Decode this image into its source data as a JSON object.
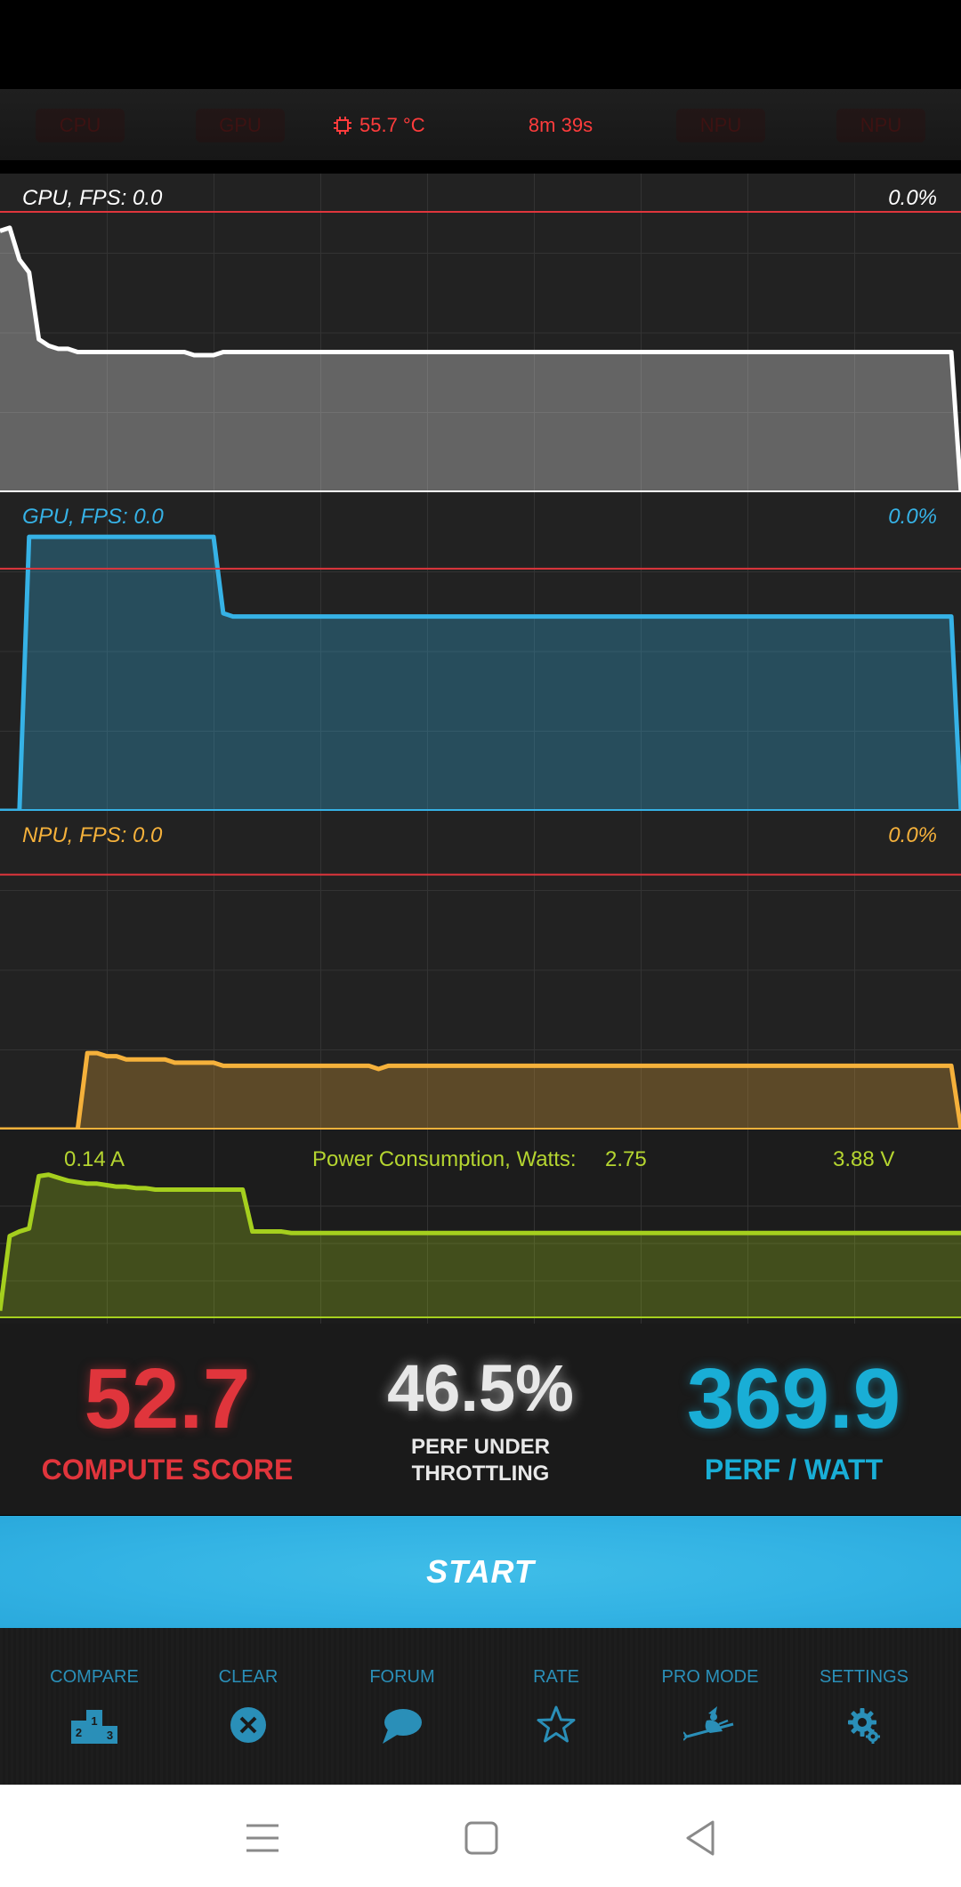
{
  "tabs": {
    "cpu": "CPU",
    "gpu": "GPU",
    "temperature": "55.7 °C",
    "elapsed": "8m 39s",
    "npu_1": "NPU",
    "npu_2": "NPU"
  },
  "panels": {
    "cpu": {
      "label": "CPU, FPS:",
      "fps": "0.0",
      "percent": "0.0%"
    },
    "gpu": {
      "label": "GPU, FPS:",
      "fps": "0.0",
      "percent": "0.0%"
    },
    "npu": {
      "label": "NPU, FPS:",
      "fps": "0.0",
      "percent": "0.0%"
    }
  },
  "power": {
    "current": "0.14 A",
    "label": "Power Consumption, Watts:",
    "watts": "2.75",
    "voltage": "3.88 V"
  },
  "scores": {
    "compute_value": "52.7",
    "compute_label": "COMPUTE SCORE",
    "throttle_value": "46.5%",
    "throttle_label_1": "PERF UNDER",
    "throttle_label_2": "THROTTLING",
    "perf_watt_value": "369.9",
    "perf_watt_label": "PERF / WATT"
  },
  "start_label": "START",
  "toolbar": [
    {
      "label": "COMPARE",
      "icon": "podium-icon"
    },
    {
      "label": "CLEAR",
      "icon": "clear-icon"
    },
    {
      "label": "FORUM",
      "icon": "chat-bubble-icon"
    },
    {
      "label": "RATE",
      "icon": "star-icon"
    },
    {
      "label": "PRO MODE",
      "icon": "witch-icon"
    },
    {
      "label": "SETTINGS",
      "icon": "gear-icon"
    }
  ],
  "colors": {
    "cpu": "#ffffff",
    "gpu": "#36b2e6",
    "npu": "#f5b13b",
    "power": "#a5cf1e",
    "compute": "#e0353c",
    "throttle": "#e8e8e8",
    "perf_watt": "#19aed6",
    "threshold": "#e0353c",
    "start": "#33b3e4"
  },
  "chart_data": [
    {
      "type": "area",
      "series": [
        {
          "name": "CPU",
          "values": [
            82,
            83,
            73,
            69,
            48,
            46,
            45,
            45,
            44,
            44,
            44,
            44,
            44,
            44,
            44,
            44,
            44,
            44,
            44,
            44,
            43,
            43,
            43,
            44,
            44,
            44,
            44,
            44,
            44,
            44,
            44,
            44,
            44,
            44,
            44,
            44,
            44,
            44,
            44,
            44,
            44,
            44,
            44,
            44,
            44,
            44,
            44,
            44,
            44,
            44,
            44,
            44,
            44,
            44,
            44,
            44,
            44,
            44,
            44,
            44,
            44,
            44,
            44,
            44,
            44,
            44,
            44,
            44,
            44,
            44,
            44,
            44,
            44,
            44,
            44,
            44,
            44,
            44,
            44,
            44,
            44,
            44,
            44,
            44,
            44,
            44,
            44,
            44,
            44,
            44,
            44,
            44,
            44,
            44,
            44,
            44,
            44,
            44,
            44,
            0
          ]
        }
      ],
      "ylim": [
        0,
        100
      ],
      "threshold": 88
    },
    {
      "type": "area",
      "series": [
        {
          "name": "GPU",
          "values": [
            0,
            0,
            0,
            86,
            86,
            86,
            86,
            86,
            86,
            86,
            86,
            86,
            86,
            86,
            86,
            86,
            86,
            86,
            86,
            86,
            86,
            86,
            86,
            62,
            61,
            61,
            61,
            61,
            61,
            61,
            61,
            61,
            61,
            61,
            61,
            61,
            61,
            61,
            61,
            61,
            61,
            61,
            61,
            61,
            61,
            61,
            61,
            61,
            61,
            61,
            61,
            61,
            61,
            61,
            61,
            61,
            61,
            61,
            61,
            61,
            61,
            61,
            61,
            61,
            61,
            61,
            61,
            61,
            61,
            61,
            61,
            61,
            61,
            61,
            61,
            61,
            61,
            61,
            61,
            61,
            61,
            61,
            61,
            61,
            61,
            61,
            61,
            61,
            61,
            61,
            61,
            61,
            61,
            61,
            61,
            61,
            61,
            61,
            61,
            0
          ]
        }
      ],
      "ylim": [
        0,
        100
      ],
      "threshold": 76
    },
    {
      "type": "area",
      "series": [
        {
          "name": "NPU",
          "values": [
            0,
            0,
            0,
            0,
            0,
            0,
            0,
            0,
            0,
            24,
            24,
            23,
            23,
            22,
            22,
            22,
            22,
            22,
            21,
            21,
            21,
            21,
            21,
            20,
            20,
            20,
            20,
            20,
            20,
            20,
            20,
            20,
            20,
            20,
            20,
            20,
            20,
            20,
            20,
            19,
            20,
            20,
            20,
            20,
            20,
            20,
            20,
            20,
            20,
            20,
            20,
            20,
            20,
            20,
            20,
            20,
            20,
            20,
            20,
            20,
            20,
            20,
            20,
            20,
            20,
            20,
            20,
            20,
            20,
            20,
            20,
            20,
            20,
            20,
            20,
            20,
            20,
            20,
            20,
            20,
            20,
            20,
            20,
            20,
            20,
            20,
            20,
            20,
            20,
            20,
            20,
            20,
            20,
            20,
            20,
            20,
            20,
            20,
            20,
            0
          ]
        }
      ],
      "ylim": [
        0,
        100
      ],
      "threshold": 80
    },
    {
      "type": "area",
      "series": [
        {
          "name": "Power",
          "values": [
            5,
            55,
            58,
            60,
            95,
            96,
            94,
            92,
            91,
            90,
            90,
            89,
            88,
            88,
            87,
            87,
            86,
            86,
            86,
            86,
            86,
            86,
            86,
            86,
            86,
            86,
            58,
            58,
            58,
            58,
            57,
            57,
            57,
            57,
            57,
            57,
            57,
            57,
            57,
            57,
            57,
            57,
            57,
            57,
            57,
            57,
            57,
            57,
            57,
            57,
            57,
            57,
            57,
            57,
            57,
            57,
            57,
            57,
            57,
            57,
            57,
            57,
            57,
            57,
            57,
            57,
            57,
            57,
            57,
            57,
            57,
            57,
            57,
            57,
            57,
            57,
            57,
            57,
            57,
            57,
            57,
            57,
            57,
            57,
            57,
            57,
            57,
            57,
            57,
            57,
            57,
            57,
            57,
            57,
            57,
            57,
            57,
            57,
            57,
            57
          ]
        }
      ],
      "ylim": [
        0,
        100
      ]
    }
  ]
}
